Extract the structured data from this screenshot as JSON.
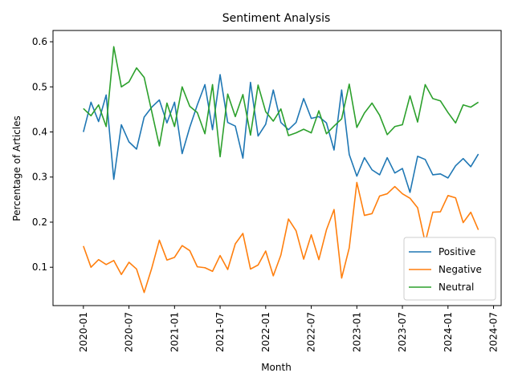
{
  "chart_data": {
    "type": "line",
    "title": "Sentiment Analysis",
    "xlabel": "Month",
    "ylabel": "Percentage of Articles",
    "x_start": "2020-01",
    "x_freq": "monthly",
    "xticks": [
      "2020-01",
      "2020-07",
      "2021-01",
      "2021-07",
      "2022-01",
      "2022-07",
      "2023-01",
      "2023-07",
      "2024-01",
      "2024-07"
    ],
    "xlim": [
      "2019-09",
      "2024-08"
    ],
    "ylim": [
      0.015,
      0.625
    ],
    "yticks": [
      0.1,
      0.2,
      0.3,
      0.4,
      0.5,
      0.6
    ],
    "ytick_labels": [
      "0.1",
      "0.2",
      "0.3",
      "0.4",
      "0.5",
      "0.6"
    ],
    "grid": false,
    "legend": "lower right",
    "series": [
      {
        "name": "Positive",
        "color": "#1f77b4",
        "values": [
          0.4,
          0.466,
          0.423,
          0.482,
          0.295,
          0.416,
          0.378,
          0.362,
          0.433,
          0.455,
          0.471,
          0.42,
          0.466,
          0.352,
          0.41,
          0.46,
          0.505,
          0.405,
          0.527,
          0.421,
          0.413,
          0.342,
          0.51,
          0.391,
          0.417,
          0.493,
          0.421,
          0.405,
          0.421,
          0.474,
          0.43,
          0.434,
          0.42,
          0.36,
          0.493,
          0.35,
          0.302,
          0.343,
          0.316,
          0.305,
          0.343,
          0.309,
          0.319,
          0.266,
          0.346,
          0.339,
          0.305,
          0.307,
          0.298,
          0.325,
          0.341,
          0.323,
          0.351
        ]
      },
      {
        "name": "Negative",
        "color": "#ff7f0e",
        "values": [
          0.147,
          0.1,
          0.117,
          0.106,
          0.115,
          0.084,
          0.111,
          0.096,
          0.044,
          0.098,
          0.16,
          0.116,
          0.122,
          0.148,
          0.137,
          0.101,
          0.099,
          0.091,
          0.126,
          0.095,
          0.152,
          0.175,
          0.096,
          0.105,
          0.136,
          0.081,
          0.127,
          0.207,
          0.181,
          0.118,
          0.172,
          0.117,
          0.183,
          0.228,
          0.076,
          0.143,
          0.288,
          0.215,
          0.219,
          0.258,
          0.263,
          0.279,
          0.263,
          0.253,
          0.232,
          0.155,
          0.222,
          0.223,
          0.259,
          0.254,
          0.199,
          0.222,
          0.183
        ]
      },
      {
        "name": "Neutral",
        "color": "#2ca02c",
        "values": [
          0.452,
          0.436,
          0.46,
          0.412,
          0.589,
          0.5,
          0.511,
          0.542,
          0.521,
          0.445,
          0.369,
          0.464,
          0.412,
          0.5,
          0.457,
          0.443,
          0.396,
          0.505,
          0.345,
          0.484,
          0.434,
          0.483,
          0.393,
          0.504,
          0.445,
          0.424,
          0.451,
          0.392,
          0.398,
          0.406,
          0.398,
          0.447,
          0.396,
          0.413,
          0.429,
          0.506,
          0.41,
          0.442,
          0.464,
          0.437,
          0.394,
          0.412,
          0.416,
          0.48,
          0.422,
          0.505,
          0.474,
          0.469,
          0.443,
          0.42,
          0.46,
          0.455,
          0.466
        ]
      }
    ]
  }
}
